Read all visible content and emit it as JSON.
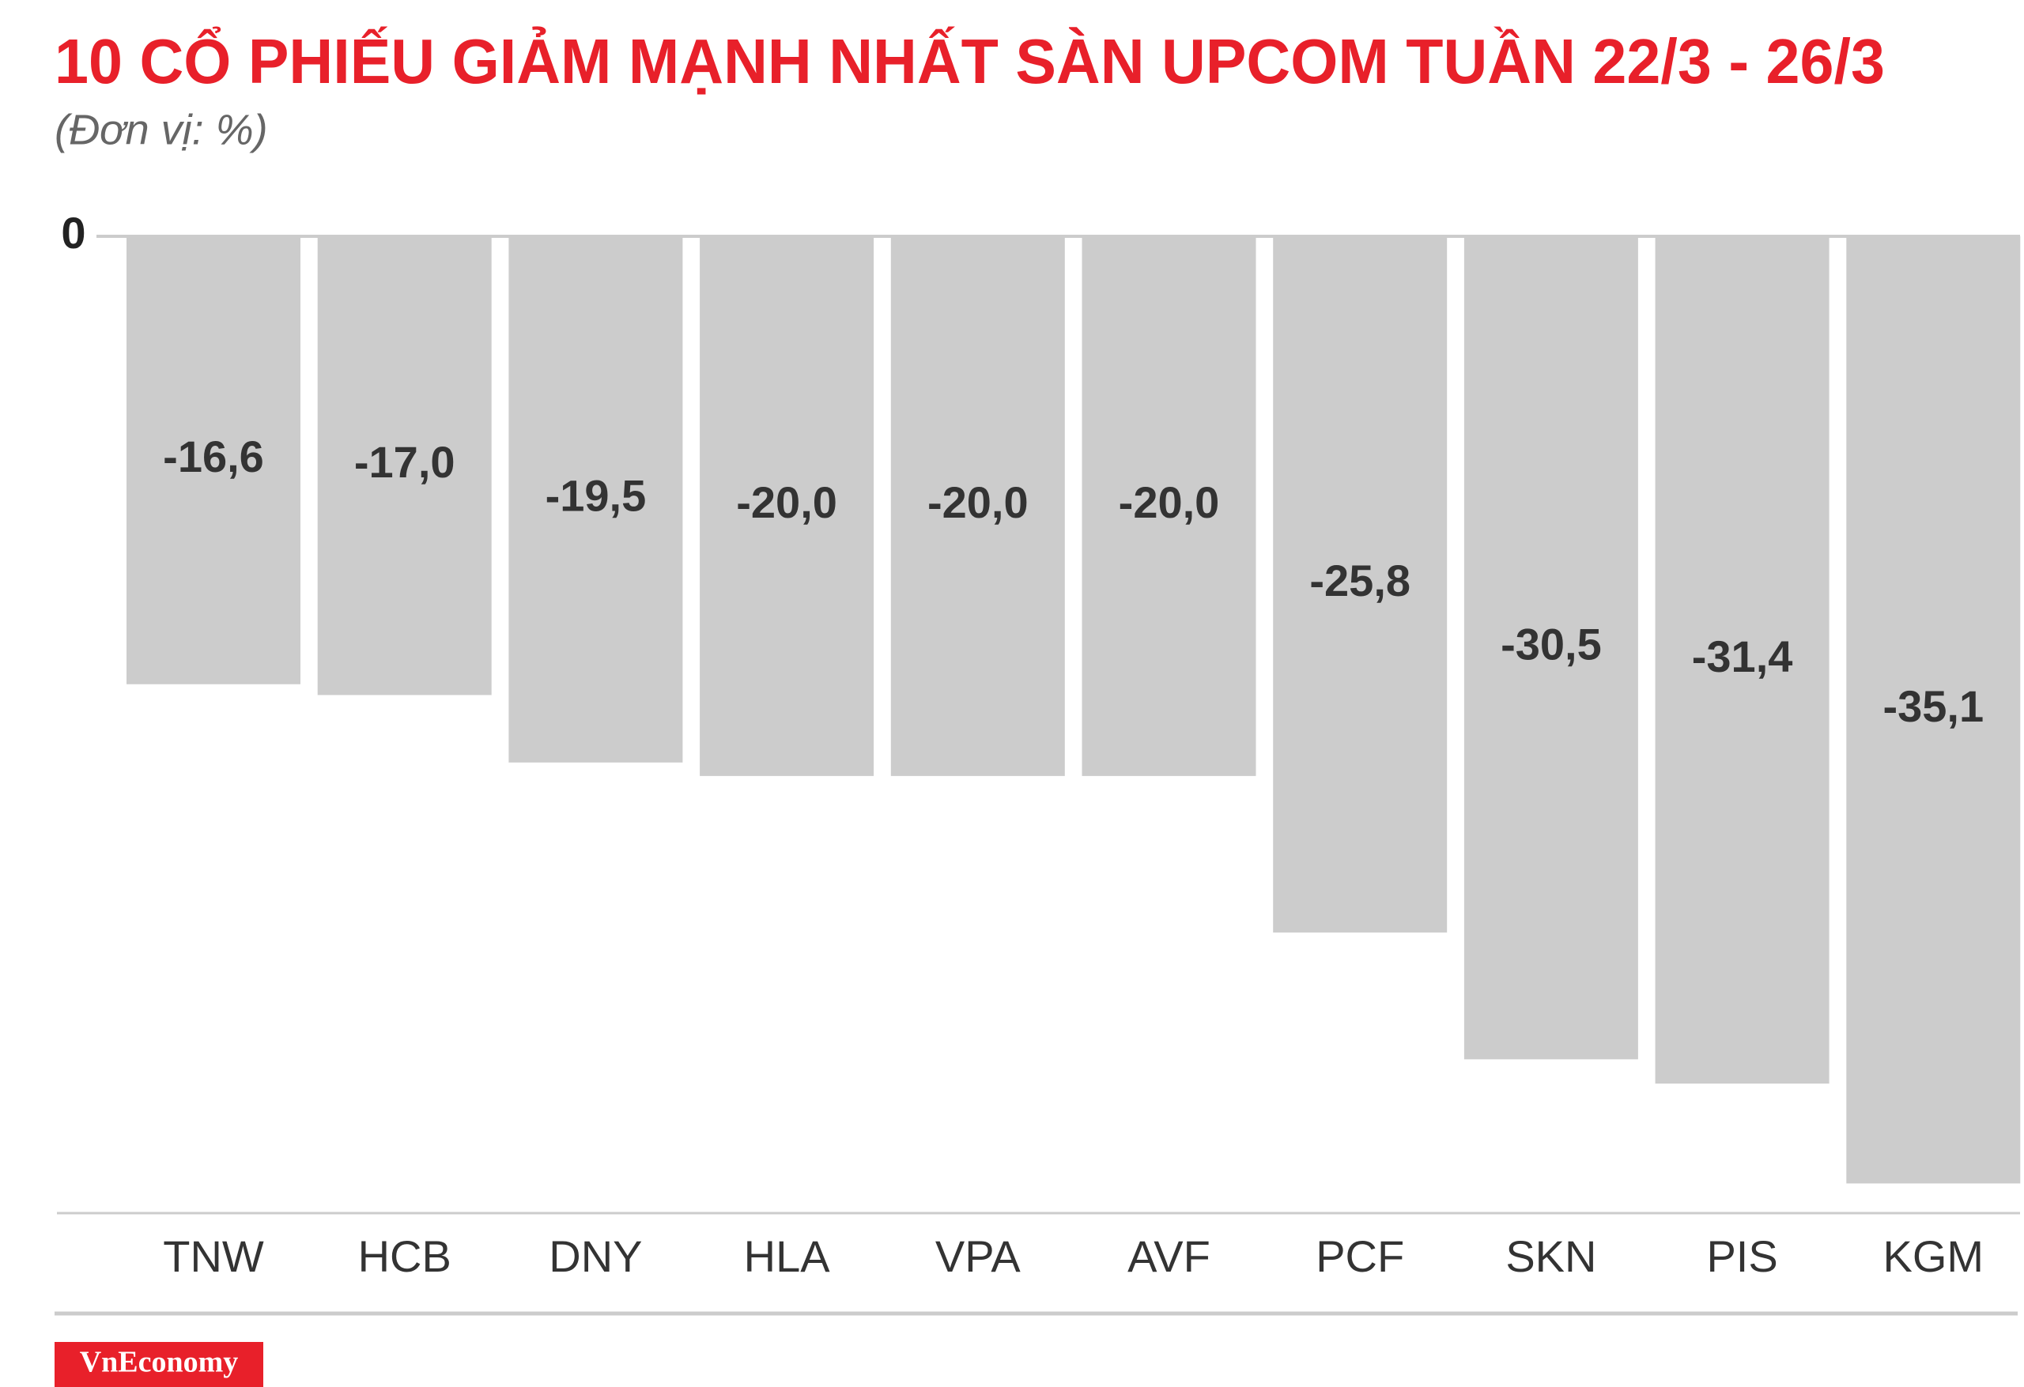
{
  "chart_data": {
    "type": "bar",
    "title": "10 CỔ PHIẾU GIẢM MẠNH NHẤT SÀN UPCOM TUẦN 22/3 - 26/3",
    "subtitle": "(Đơn vị: %)",
    "categories": [
      "TNW",
      "HCB",
      "DNY",
      "HLA",
      "VPA",
      "AVF",
      "PCF",
      "SKN",
      "PIS",
      "KGM"
    ],
    "values": [
      -16.6,
      -17.0,
      -19.5,
      -20.0,
      -20.0,
      -20.0,
      -25.8,
      -30.5,
      -31.4,
      -35.1
    ],
    "value_labels": [
      "-16,6",
      "-17,0",
      "-19,5",
      "-20,0",
      "-20,0",
      "-20,0",
      "-25,8",
      "-30,5",
      "-31,4",
      "-35,1"
    ],
    "color": "#cccccc",
    "ylim": [
      -36.2,
      0
    ],
    "yticks": [
      0
    ],
    "source": "VnEconomy"
  }
}
